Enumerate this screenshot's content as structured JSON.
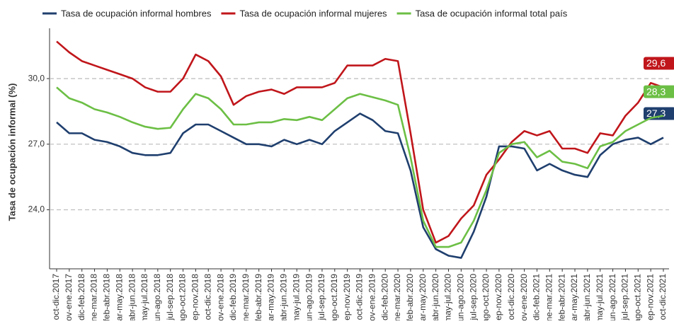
{
  "chart_data": {
    "type": "line",
    "y_label": "Tasa de ocupación informal (%)",
    "categories": [
      "oct-dic.2017",
      "nov-ene.2017",
      "dic-feb.2018",
      "ene-mar.2018",
      "feb-abr.2018",
      "mar-may.2018",
      "abr-jun.2018",
      "may-jul.2018",
      "jun-ago.2018",
      "jul-sep.2018",
      "ago-oct.2018",
      "sep-nov.2018",
      "oct-dic.2018",
      "nov-ene.2018",
      "dic-feb.2019",
      "ene-mar.2019",
      "feb-abr.2019",
      "mar-may.2019",
      "abr-jun.2019",
      "may-jul.2019",
      "jun-ago.2019",
      "jul-sep.2019",
      "ago-oct.2019",
      "sep-nov.2019",
      "oct-dic.2019",
      "nov-ene.2019",
      "dic-feb.2020",
      "ene-mar.2020",
      "feb-abr.2020",
      "mar-may.2020",
      "abr-jun.2020",
      "may-jul.2020",
      "jun-ago.2020",
      "jul-sep.2020",
      "ago-oct.2020",
      "sep-nov.2020",
      "oct-dic.2020",
      "nov-ene.2020",
      "dic-feb.2021",
      "ene-mar.2021",
      "feb-abr.2021",
      "mar-may.2021",
      "abr-jun.2021",
      "may-jul.2021",
      "jun-ago.2021",
      "jul-sep.2021",
      "ago-oct.2021",
      "sep-nov.2021",
      "oct-dic.2021"
    ],
    "series": [
      {
        "name": "Tasa de ocupación informal hombres",
        "color": "#1f3f6e",
        "values": [
          28.0,
          27.5,
          27.5,
          27.2,
          27.1,
          26.9,
          26.6,
          26.5,
          26.5,
          26.6,
          27.5,
          27.9,
          27.9,
          27.6,
          27.3,
          27.0,
          27.0,
          26.9,
          27.2,
          27.0,
          27.2,
          27.0,
          27.6,
          28.0,
          28.4,
          28.1,
          27.6,
          27.5,
          25.8,
          23.2,
          22.2,
          21.9,
          21.8,
          23.0,
          24.6,
          26.9,
          26.9,
          26.8,
          25.8,
          26.1,
          25.8,
          25.6,
          25.5,
          26.5,
          27.0,
          27.2,
          27.3,
          27.0,
          27.3
        ],
        "value_labels": [
          null,
          null,
          null,
          null,
          null,
          null,
          null,
          null,
          null,
          null,
          null,
          null,
          null,
          null,
          null,
          null,
          null,
          null,
          null,
          null,
          null,
          null,
          null,
          null,
          null,
          null,
          null,
          null,
          null,
          null,
          null,
          null,
          null,
          null,
          null,
          null,
          null,
          null,
          null,
          null,
          null,
          null,
          null,
          null,
          null,
          null,
          null,
          null,
          "27,3"
        ]
      },
      {
        "name": "Tasa de ocupación informal mujeres",
        "color": "#c0161b",
        "values": [
          31.7,
          31.2,
          30.8,
          30.6,
          30.4,
          30.2,
          30.0,
          29.6,
          29.4,
          29.4,
          30.0,
          31.1,
          30.8,
          30.1,
          28.8,
          29.2,
          29.4,
          29.5,
          29.3,
          29.6,
          29.6,
          29.6,
          29.8,
          30.6,
          30.6,
          30.6,
          30.9,
          30.8,
          27.5,
          24.0,
          22.5,
          22.8,
          23.6,
          24.2,
          25.6,
          26.3,
          27.1,
          27.6,
          27.4,
          27.6,
          26.8,
          26.8,
          26.6,
          27.5,
          27.4,
          28.3,
          28.9,
          29.8,
          29.6
        ],
        "value_labels": [
          null,
          null,
          null,
          null,
          null,
          null,
          null,
          null,
          null,
          null,
          null,
          null,
          null,
          null,
          null,
          null,
          null,
          null,
          null,
          null,
          null,
          null,
          null,
          null,
          null,
          null,
          null,
          null,
          null,
          null,
          null,
          null,
          null,
          null,
          null,
          null,
          null,
          null,
          null,
          null,
          null,
          null,
          null,
          null,
          null,
          null,
          null,
          null,
          "29,6"
        ]
      },
      {
        "name": "Tasa de ocupación informal total país",
        "color": "#6cbf45",
        "values": [
          29.6,
          29.1,
          28.9,
          28.6,
          28.45,
          28.25,
          28.0,
          27.8,
          27.7,
          27.75,
          28.6,
          29.3,
          29.1,
          28.6,
          27.9,
          27.9,
          28.0,
          28.0,
          28.15,
          28.1,
          28.25,
          28.1,
          28.6,
          29.1,
          29.3,
          29.15,
          29.0,
          28.8,
          26.4,
          23.5,
          22.3,
          22.3,
          22.5,
          23.5,
          24.9,
          26.6,
          27.0,
          27.1,
          26.4,
          26.7,
          26.2,
          26.1,
          25.9,
          26.9,
          27.1,
          27.6,
          27.9,
          28.2,
          28.3
        ],
        "value_labels": [
          null,
          null,
          null,
          null,
          null,
          null,
          null,
          null,
          null,
          null,
          null,
          null,
          null,
          null,
          null,
          null,
          null,
          null,
          null,
          null,
          null,
          null,
          null,
          null,
          null,
          null,
          null,
          null,
          null,
          null,
          null,
          null,
          null,
          null,
          null,
          null,
          null,
          null,
          null,
          null,
          null,
          null,
          null,
          null,
          null,
          null,
          null,
          null,
          "28,3"
        ]
      }
    ],
    "ylim": [
      21.3,
      32.3
    ],
    "yticks": [
      {
        "value": 24,
        "label": "24,0"
      },
      {
        "value": 27,
        "label": "27,0"
      },
      {
        "value": 30,
        "label": "30,0"
      }
    ],
    "grid": true,
    "legend": "top"
  }
}
